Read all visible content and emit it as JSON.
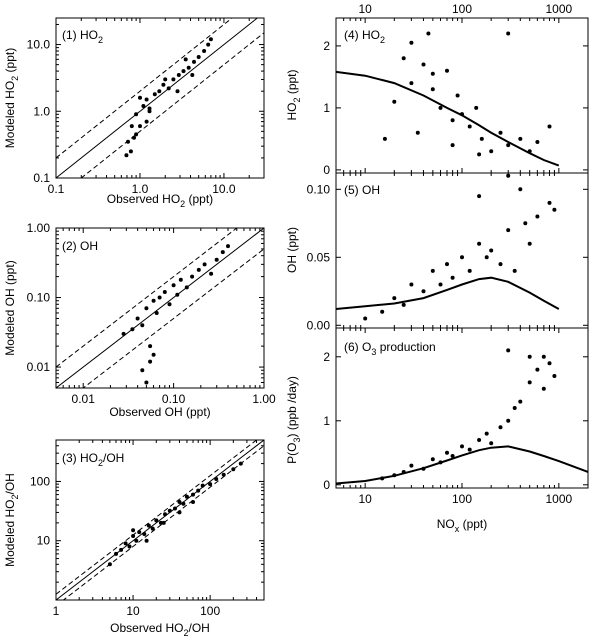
{
  "chart_data": [
    {
      "id": "p1",
      "type": "scatter",
      "title": "(1) HO",
      "title_sub": "2",
      "xlabel": "Observed HO",
      "xlabel_sub": "2",
      "xlabel_tail": " (ppt)",
      "ylabel": "Modeled HO",
      "ylabel_sub": "2",
      "ylabel_tail": " (ppt)",
      "xscale": "log",
      "yscale": "log",
      "xlim": [
        0.1,
        30
      ],
      "ylim": [
        0.1,
        25
      ],
      "xticks": [
        {
          "v": 0.1,
          "label": "0.1"
        },
        {
          "v": 1,
          "label": "1.0"
        },
        {
          "v": 10,
          "label": "10.0"
        }
      ],
      "yticks": [
        {
          "v": 0.1,
          "label": "0.1"
        },
        {
          "v": 1,
          "label": "1.0"
        },
        {
          "v": 10,
          "label": "10.0"
        }
      ],
      "ref_lines": {
        "solid_factor": 1,
        "dashed_factors": [
          0.5,
          2
        ]
      },
      "x": [
        0.69,
        0.72,
        0.78,
        0.8,
        0.85,
        0.9,
        1.0,
        1.1,
        1.2,
        1.3,
        1.5,
        1.7,
        1.9,
        2.2,
        2.5,
        2.9,
        3.3,
        3.8,
        4.4,
        5.0,
        5.8,
        6.5,
        7.0,
        1.0,
        1.3,
        2.0,
        2.8,
        3.5,
        4.2,
        0.9,
        1.2
      ],
      "y": [
        0.22,
        0.35,
        0.25,
        0.6,
        0.4,
        0.9,
        0.6,
        1.2,
        1.5,
        1.0,
        1.8,
        2.0,
        2.5,
        2.2,
        3.0,
        3.5,
        4.0,
        4.5,
        5.5,
        6.5,
        8.0,
        10.0,
        12.0,
        1.6,
        1.1,
        3.0,
        2.0,
        6.0,
        3.5,
        0.45,
        0.7
      ]
    },
    {
      "id": "p2",
      "type": "scatter",
      "title": "(2) OH",
      "xlabel": "Observed OH (ppt)",
      "ylabel": "Modeled OH (ppt)",
      "xscale": "log",
      "yscale": "log",
      "xlim": [
        0.005,
        1.0
      ],
      "ylim": [
        0.005,
        1.0
      ],
      "xticks": [
        {
          "v": 0.01,
          "label": "0.01"
        },
        {
          "v": 0.1,
          "label": "0.10"
        },
        {
          "v": 1,
          "label": "1.00"
        }
      ],
      "yticks": [
        {
          "v": 0.01,
          "label": "0.01"
        },
        {
          "v": 0.1,
          "label": "0.10"
        },
        {
          "v": 1,
          "label": "1.00"
        }
      ],
      "ref_lines": {
        "solid_factor": 1,
        "dashed_factors": [
          0.5,
          2
        ]
      },
      "x": [
        0.028,
        0.035,
        0.04,
        0.045,
        0.05,
        0.055,
        0.06,
        0.065,
        0.07,
        0.08,
        0.09,
        0.1,
        0.11,
        0.12,
        0.14,
        0.16,
        0.19,
        0.22,
        0.26,
        0.3,
        0.35,
        0.4,
        0.045,
        0.05,
        0.055,
        0.06
      ],
      "y": [
        0.03,
        0.035,
        0.05,
        0.04,
        0.07,
        0.02,
        0.09,
        0.06,
        0.1,
        0.12,
        0.08,
        0.15,
        0.11,
        0.18,
        0.14,
        0.2,
        0.25,
        0.3,
        0.22,
        0.35,
        0.45,
        0.55,
        0.009,
        0.006,
        0.012,
        0.015
      ]
    },
    {
      "id": "p3",
      "type": "scatter",
      "title": "",
      "xlabel": "Observed HO",
      "xlabel_sub": "2",
      "xlabel_tail": "/OH",
      "ylabel": "Modeled HO",
      "ylabel_sub": "2",
      "ylabel_tail": "/OH",
      "inner_label": "(3) HO",
      "inner_label_sub": "2",
      "inner_label_tail": "/OH",
      "xscale": "log",
      "yscale": "log",
      "xlim": [
        1,
        500
      ],
      "ylim": [
        1,
        500
      ],
      "xticks": [
        {
          "v": 1,
          "label": "1"
        },
        {
          "v": 10,
          "label": "10"
        },
        {
          "v": 100,
          "label": "100"
        }
      ],
      "yticks": [
        {
          "v": 10,
          "label": "10"
        },
        {
          "v": 100,
          "label": "100"
        }
      ],
      "ref_lines": {
        "solid_factor": 1,
        "dashed_factors": [
          0.8,
          1.25
        ]
      },
      "x": [
        5,
        6,
        7,
        8,
        9,
        10,
        11,
        12,
        14,
        16,
        18,
        20,
        23,
        26,
        30,
        35,
        40,
        45,
        50,
        60,
        70,
        80,
        100,
        120,
        150,
        200,
        250,
        10,
        15,
        25,
        40,
        60
      ],
      "y": [
        4,
        6,
        7,
        9,
        8,
        12,
        10,
        14,
        13,
        18,
        16,
        22,
        20,
        28,
        32,
        35,
        45,
        42,
        55,
        60,
        70,
        85,
        90,
        110,
        130,
        160,
        200,
        15,
        10,
        20,
        30,
        45
      ]
    },
    {
      "id": "p4",
      "type": "scatter",
      "title": "(4) HO",
      "title_sub": "2",
      "ylabel": "HO",
      "ylabel_sub": "2",
      "ylabel_tail": " (ppt)",
      "xscale": "log",
      "yscale": "linear",
      "xlim": [
        5,
        2000
      ],
      "ylim": [
        -0.05,
        2.45
      ],
      "xticks_top": [
        {
          "v": 10,
          "label": "10"
        },
        {
          "v": 100,
          "label": "100"
        },
        {
          "v": 1000,
          "label": "1000"
        }
      ],
      "yticks": [
        {
          "v": 0,
          "label": "0"
        },
        {
          "v": 1,
          "label": "1"
        },
        {
          "v": 2,
          "label": "2"
        }
      ],
      "model_curve": {
        "x": [
          5,
          10,
          20,
          40,
          70,
          100,
          150,
          200,
          300,
          500,
          700,
          1000
        ],
        "y": [
          1.58,
          1.52,
          1.4,
          1.2,
          1.0,
          0.88,
          0.72,
          0.6,
          0.45,
          0.27,
          0.16,
          0.07
        ]
      },
      "x": [
        16,
        20,
        25,
        30,
        35,
        40,
        45,
        50,
        60,
        70,
        80,
        90,
        100,
        120,
        140,
        160,
        200,
        250,
        300,
        400,
        500,
        600,
        800,
        30,
        50,
        80,
        150,
        300
      ],
      "y": [
        0.5,
        1.1,
        1.8,
        1.4,
        0.6,
        1.7,
        2.2,
        1.3,
        1.0,
        1.6,
        0.8,
        1.2,
        0.9,
        0.7,
        1.0,
        0.5,
        0.3,
        0.6,
        0.4,
        0.5,
        0.3,
        0.45,
        0.7,
        2.05,
        1.55,
        0.4,
        0.25,
        2.2
      ]
    },
    {
      "id": "p5",
      "type": "scatter",
      "title": "(5) OH",
      "ylabel": "OH (ppt)",
      "xscale": "log",
      "yscale": "linear",
      "xlim": [
        5,
        2000
      ],
      "ylim": [
        -0.002,
        0.112
      ],
      "yticks": [
        {
          "v": 0,
          "label": "0.00"
        },
        {
          "v": 0.05,
          "label": "0.05"
        },
        {
          "v": 0.1,
          "label": "0.10"
        }
      ],
      "model_curve": {
        "x": [
          5,
          10,
          20,
          40,
          70,
          100,
          150,
          200,
          300,
          500,
          700,
          1000
        ],
        "y": [
          0.012,
          0.014,
          0.016,
          0.02,
          0.026,
          0.03,
          0.034,
          0.035,
          0.032,
          0.024,
          0.018,
          0.012
        ]
      },
      "x": [
        10,
        15,
        20,
        25,
        30,
        40,
        50,
        60,
        70,
        80,
        100,
        120,
        150,
        180,
        200,
        250,
        300,
        350,
        400,
        500,
        600,
        800,
        900,
        150,
        300,
        450
      ],
      "y": [
        0.005,
        0.01,
        0.02,
        0.015,
        0.03,
        0.025,
        0.04,
        0.03,
        0.045,
        0.035,
        0.05,
        0.04,
        0.06,
        0.05,
        0.055,
        0.045,
        0.07,
        0.04,
        0.1,
        0.06,
        0.08,
        0.09,
        0.085,
        0.095,
        0.11,
        0.075
      ]
    },
    {
      "id": "p6",
      "type": "scatter",
      "title": "(6) O",
      "title_sub": "3",
      "title_tail": " production",
      "xlabel": "NO",
      "xlabel_sub": "x",
      "xlabel_tail": " (ppt)",
      "ylabel": "P(O",
      "ylabel_sub": "3",
      "ylabel_tail": ") (ppb /day)",
      "xscale": "log",
      "yscale": "linear",
      "xlim": [
        5,
        2000
      ],
      "ylim": [
        -0.05,
        2.45
      ],
      "xticks": [
        {
          "v": 10,
          "label": "10"
        },
        {
          "v": 100,
          "label": "100"
        },
        {
          "v": 1000,
          "label": "1000"
        }
      ],
      "yticks": [
        {
          "v": 0,
          "label": "0"
        },
        {
          "v": 1,
          "label": "1"
        },
        {
          "v": 2,
          "label": "2"
        }
      ],
      "model_curve": {
        "x": [
          5,
          10,
          20,
          40,
          70,
          100,
          150,
          200,
          300,
          500,
          700,
          1000,
          2000
        ],
        "y": [
          0.02,
          0.06,
          0.14,
          0.26,
          0.38,
          0.46,
          0.54,
          0.58,
          0.6,
          0.52,
          0.45,
          0.37,
          0.2
        ]
      },
      "x": [
        15,
        20,
        25,
        30,
        40,
        50,
        60,
        70,
        80,
        100,
        120,
        150,
        180,
        200,
        250,
        300,
        350,
        400,
        500,
        600,
        700,
        800,
        900,
        300,
        500,
        700
      ],
      "y": [
        0.1,
        0.15,
        0.2,
        0.3,
        0.25,
        0.4,
        0.35,
        0.5,
        0.45,
        0.6,
        0.55,
        0.7,
        0.8,
        0.65,
        0.9,
        1.0,
        1.2,
        1.3,
        1.6,
        1.8,
        2.0,
        1.9,
        1.7,
        2.1,
        2.0,
        1.5
      ]
    }
  ]
}
